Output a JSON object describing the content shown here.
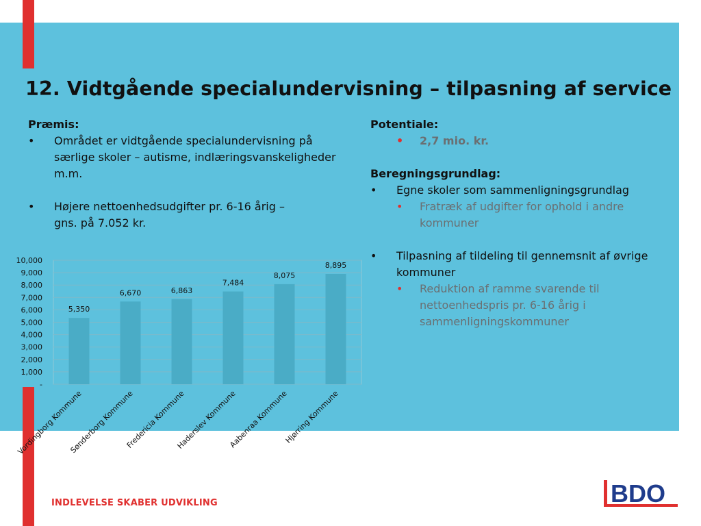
{
  "slide": {
    "title": "12. Vidtgående specialundervisning – tilpasning af service",
    "footer": "INDLEVELSE SKABER UDVIKLING",
    "logo_text": "BDO"
  },
  "left": {
    "heading": "Præmis:",
    "bullet": "•",
    "bullets": [
      "Området er vidtgående specialundervisning på særlige skoler – autisme, indlæringsvanskeligheder m.m.",
      "Højere nettoenhedsudgifter pr. 6-16 årig – gns. på 7.052 kr."
    ]
  },
  "right": {
    "potential_heading": "Potentiale:",
    "potential_value": "2,7 mio. kr.",
    "basis_heading": "Beregningsgrundlag:",
    "bullet": "•",
    "items": [
      {
        "text": "Egne skoler som sammenligningsgrundlag",
        "sub": "Fratræk af udgifter for ophold i andre kommuner"
      },
      {
        "text": "Tilpasning af tildeling til gennemsnit af øvrige kommuner",
        "sub": "Reduktion af ramme svarende til nettoenhedspris pr. 6-16 årig i sammenligningskommuner"
      }
    ]
  },
  "colors": {
    "panel": "#5dc1dd",
    "accent_red": "#e0302f",
    "bar": "#4aacc6",
    "logo_blue": "#1f3c8c"
  },
  "chart_data": {
    "type": "bar",
    "categories": [
      "Vordingborg Kommune",
      "Sønderborg Kommune",
      "Fredericia Kommune",
      "Haderslev Kommune",
      "Aabenraa Kommune",
      "Hjørring Kommune"
    ],
    "values": [
      5350,
      6670,
      6863,
      7484,
      8075,
      8895
    ],
    "value_labels": [
      "5,350",
      "6,670",
      "6,863",
      "7,484",
      "8,075",
      "8,895"
    ],
    "yticks": [
      0,
      1000,
      2000,
      3000,
      4000,
      5000,
      6000,
      7000,
      8000,
      9000,
      10000
    ],
    "ytick_labels": [
      "-",
      "1,000",
      "2,000",
      "3,000",
      "4,000",
      "5,000",
      "6,000",
      "7,000",
      "8,000",
      "9,000",
      "10,000"
    ],
    "ylim": [
      0,
      10000
    ],
    "grid": true,
    "legend": "none"
  }
}
